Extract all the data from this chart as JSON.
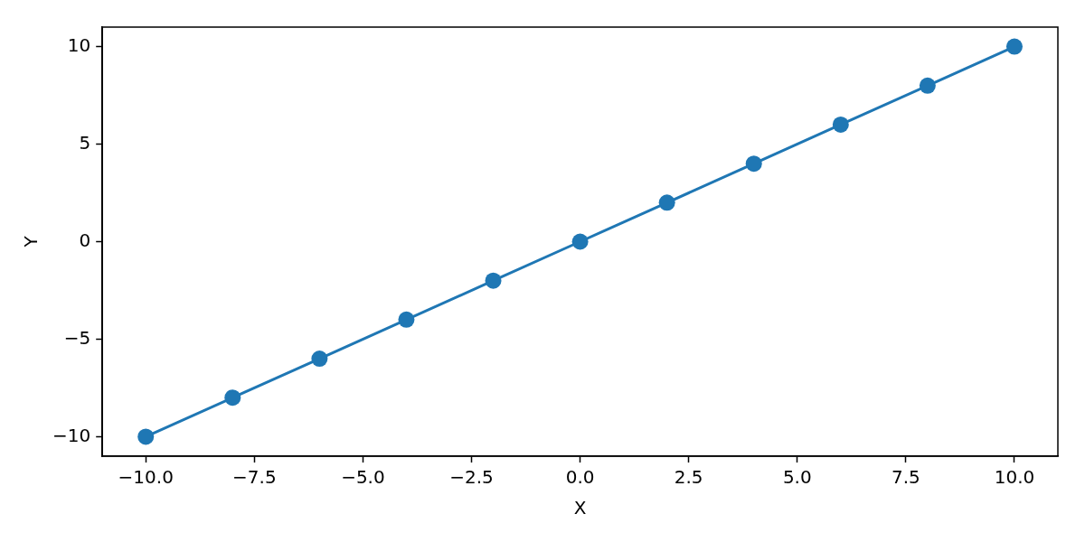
{
  "chart_data": {
    "type": "line",
    "xlabel": "X",
    "ylabel": "Y",
    "x": [
      -10,
      -8,
      -6,
      -4,
      -2,
      0,
      2,
      4,
      6,
      8,
      10
    ],
    "series": [
      {
        "color": "#1f77b4",
        "values": [
          -10,
          -8,
          -6,
          -4,
          -2,
          0,
          2,
          4,
          6,
          8,
          10
        ]
      }
    ],
    "xlim": [
      -11,
      11
    ],
    "ylim": [
      -11,
      11
    ],
    "xticks": [
      {
        "value": -10,
        "label": "−10.0"
      },
      {
        "value": -7.5,
        "label": "−7.5"
      },
      {
        "value": -5,
        "label": "−5.0"
      },
      {
        "value": -2.5,
        "label": "−2.5"
      },
      {
        "value": 0,
        "label": "0.0"
      },
      {
        "value": 2.5,
        "label": "2.5"
      },
      {
        "value": 5,
        "label": "5.0"
      },
      {
        "value": 7.5,
        "label": "7.5"
      },
      {
        "value": 10,
        "label": "10.0"
      }
    ],
    "yticks": [
      {
        "value": -10,
        "label": "−10"
      },
      {
        "value": -5,
        "label": "−5"
      },
      0,
      5,
      10
    ],
    "grid": false,
    "legend": false,
    "marker": "circle",
    "line_style": "solid"
  }
}
